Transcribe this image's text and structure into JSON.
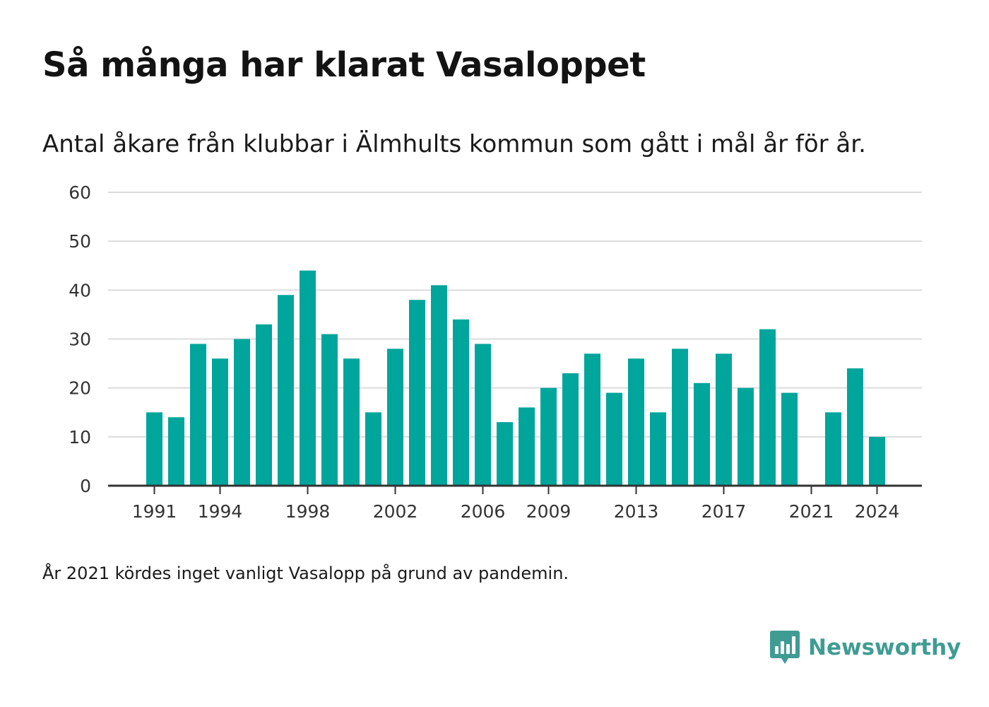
{
  "title": "Så många har klarat Vasaloppet",
  "subtitle": "Antal åkare från klubbar i Älmhults kommun som gått i mål år för år.",
  "note": "År 2021 kördes inget vanligt Vasalopp på grund av pandemin.",
  "brand": {
    "name": "Newsworthy",
    "icon": "newsworthy-logo-icon",
    "color": "#3f9c93"
  },
  "colors": {
    "bar": "#00a59c",
    "grid": "#dcdcdc",
    "axis": "#333333"
  },
  "chart_data": {
    "type": "bar",
    "title": "Så många har klarat Vasaloppet",
    "subtitle": "Antal åkare från klubbar i Älmhults kommun som gått i mål år för år.",
    "x": [
      1991,
      1992,
      1993,
      1994,
      1995,
      1996,
      1997,
      1998,
      1999,
      2000,
      2001,
      2002,
      2003,
      2004,
      2005,
      2006,
      2007,
      2008,
      2009,
      2010,
      2011,
      2012,
      2013,
      2014,
      2015,
      2016,
      2017,
      2018,
      2019,
      2020,
      2021,
      2022,
      2023,
      2024
    ],
    "values": [
      15,
      14,
      29,
      26,
      30,
      33,
      39,
      44,
      31,
      26,
      15,
      28,
      38,
      41,
      34,
      29,
      13,
      16,
      20,
      23,
      27,
      19,
      26,
      15,
      28,
      21,
      27,
      20,
      32,
      19,
      null,
      15,
      24,
      10
    ],
    "xticks": [
      "1991",
      "1994",
      "1998",
      "2002",
      "2006",
      "2009",
      "2013",
      "2017",
      "2021",
      "2024"
    ],
    "yticks": [
      "0",
      "10",
      "20",
      "30",
      "40",
      "50",
      "60"
    ],
    "ylim": [
      0,
      60
    ],
    "xlabel": "",
    "ylabel": "",
    "grid": true
  }
}
